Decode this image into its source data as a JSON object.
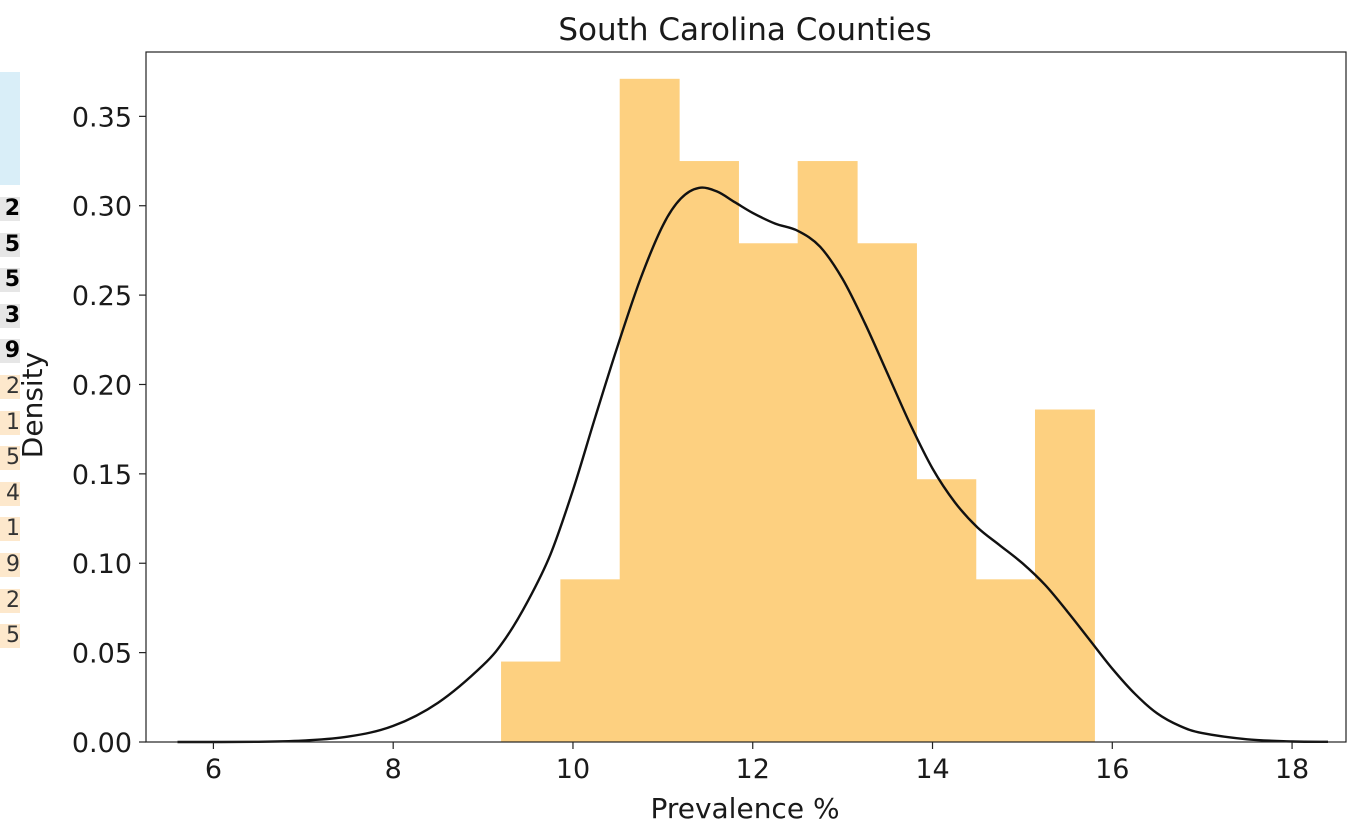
{
  "background_table": {
    "cells": [
      {
        "text": "2",
        "style": "bold"
      },
      {
        "text": "5",
        "style": "bold"
      },
      {
        "text": "5",
        "style": "bold"
      },
      {
        "text": "3",
        "style": "bold"
      },
      {
        "text": "9",
        "style": "bold"
      },
      {
        "text": "2",
        "style": "light"
      },
      {
        "text": "1",
        "style": "light"
      },
      {
        "text": "5",
        "style": "light"
      },
      {
        "text": "4",
        "style": "light"
      },
      {
        "text": "1",
        "style": "light"
      },
      {
        "text": "9",
        "style": "light"
      },
      {
        "text": "2",
        "style": "light"
      },
      {
        "text": "5",
        "style": "light"
      }
    ]
  },
  "chart_data": {
    "type": "bar",
    "subtype": "histogram with KDE density curve",
    "title": "South Carolina Counties",
    "xlabel": "Prevalence %",
    "ylabel": "Density",
    "xlim": [
      5.25,
      18.6
    ],
    "ylim": [
      0,
      0.386
    ],
    "xticks": [
      6,
      8,
      10,
      12,
      14,
      16,
      18
    ],
    "xtick_labels": [
      "6",
      "8",
      "10",
      "12",
      "14",
      "16",
      "18"
    ],
    "yticks": [
      0.0,
      0.05,
      0.1,
      0.15,
      0.2,
      0.25,
      0.3,
      0.35
    ],
    "ytick_labels": [
      "0.00",
      "0.05",
      "0.10",
      "0.15",
      "0.20",
      "0.25",
      "0.30",
      "0.35"
    ],
    "grid": false,
    "bar_color": "#fdd080",
    "line_color": "#111111",
    "histogram": {
      "bin_edges": [
        9.2,
        9.86,
        10.52,
        11.18,
        11.84,
        12.5,
        13.16,
        13.82,
        14.48,
        15.14,
        15.8
      ],
      "density": [
        0.045,
        0.091,
        0.371,
        0.325,
        0.279,
        0.325,
        0.279,
        0.147,
        0.091,
        0.186
      ]
    },
    "kde": {
      "x": [
        5.6,
        6.5,
        7.0,
        7.5,
        8.0,
        8.5,
        9.0,
        9.25,
        9.5,
        9.75,
        10.0,
        10.25,
        10.5,
        10.75,
        11.0,
        11.2,
        11.4,
        11.6,
        11.8,
        12.0,
        12.25,
        12.5,
        12.75,
        13.0,
        13.25,
        13.5,
        13.75,
        14.0,
        14.25,
        14.5,
        14.75,
        15.0,
        15.25,
        15.5,
        15.75,
        16.0,
        16.25,
        16.5,
        16.75,
        17.0,
        17.5,
        18.0,
        18.4
      ],
      "y": [
        0.0,
        0.0001,
        0.0008,
        0.003,
        0.009,
        0.022,
        0.043,
        0.058,
        0.079,
        0.105,
        0.141,
        0.182,
        0.222,
        0.259,
        0.289,
        0.304,
        0.31,
        0.308,
        0.302,
        0.296,
        0.29,
        0.286,
        0.277,
        0.259,
        0.234,
        0.206,
        0.178,
        0.153,
        0.134,
        0.12,
        0.11,
        0.1,
        0.088,
        0.073,
        0.057,
        0.041,
        0.027,
        0.016,
        0.009,
        0.005,
        0.0015,
        0.0003,
        0.0001
      ]
    }
  }
}
